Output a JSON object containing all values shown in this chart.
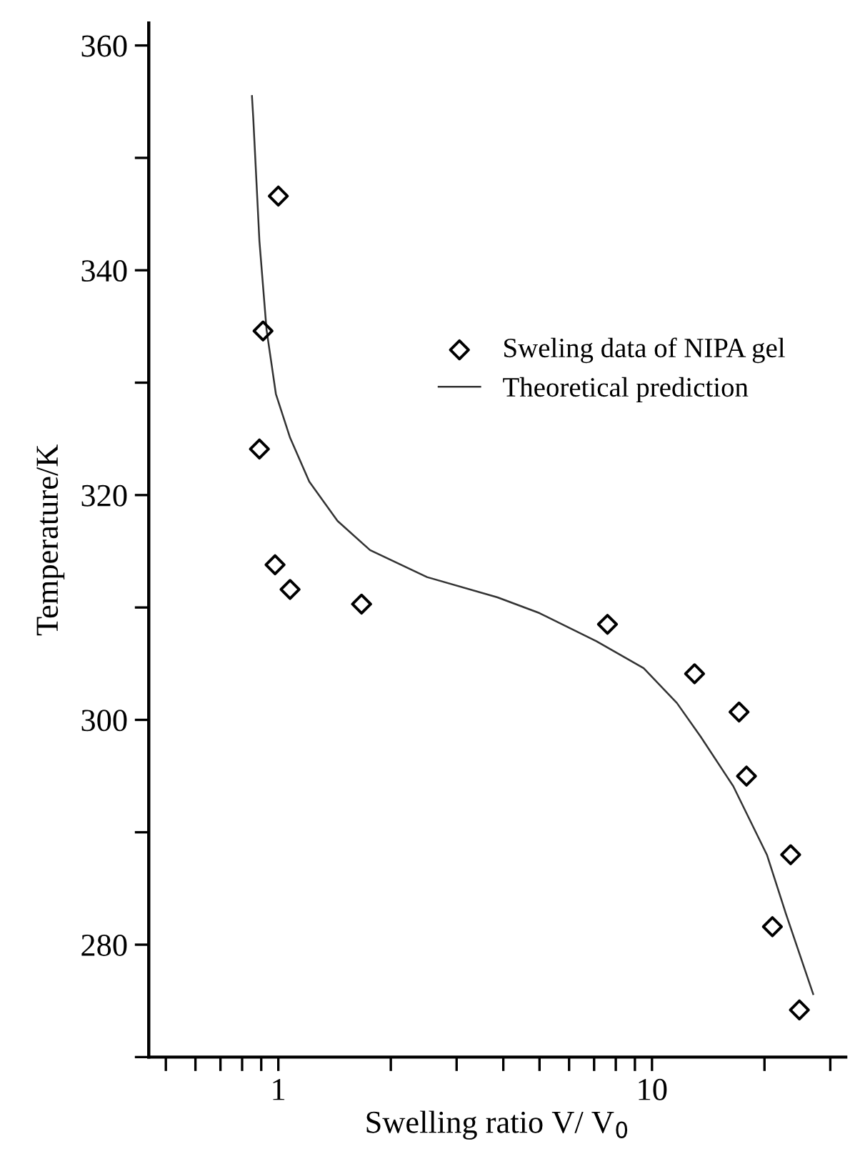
{
  "chart_data": {
    "type": "scatter",
    "xlabel": "Swelling ratio V/ V$_{0}$",
    "ylabel": "Temperature/K",
    "log": "x",
    "xlim": [
      0.45,
      33
    ],
    "ylim": [
      270,
      362
    ],
    "xticks": [
      {
        "value": 0.5,
        "label": null
      },
      {
        "value": 0.6,
        "label": null
      },
      {
        "value": 0.7,
        "label": null
      },
      {
        "value": 0.8,
        "label": null
      },
      {
        "value": 0.9,
        "label": null
      },
      1,
      {
        "value": 2,
        "label": null
      },
      {
        "value": 3,
        "label": null
      },
      {
        "value": 4,
        "label": null
      },
      {
        "value": 5,
        "label": null
      },
      {
        "value": 6,
        "label": null
      },
      {
        "value": 7,
        "label": null
      },
      {
        "value": 8,
        "label": null
      },
      {
        "value": 9,
        "label": null
      },
      10,
      {
        "value": 20,
        "label": null
      },
      {
        "value": 30,
        "label": null
      }
    ],
    "yticks": [
      {
        "value": 270,
        "label": null
      },
      280,
      {
        "value": 290,
        "label": null
      },
      300,
      {
        "value": 310,
        "label": null
      },
      320,
      {
        "value": 330,
        "label": null
      },
      340,
      {
        "value": 350,
        "label": null
      },
      360
    ],
    "grid": false,
    "legend": "top right",
    "series": [
      {
        "name": "Sweling data of NIPA gel",
        "marker": "diamond",
        "color": "#000000",
        "x": [
          1.0,
          0.91,
          0.89,
          0.98,
          1.075,
          1.67,
          7.6,
          13.0,
          17.1,
          17.9,
          23.5,
          21.0,
          24.8
        ],
        "values": [
          346.6,
          334.6,
          324.1,
          313.8,
          311.6,
          310.3,
          308.5,
          304.1,
          300.7,
          295.0,
          288.0,
          281.6,
          274.2
        ]
      },
      {
        "name": "Theoretical prediction",
        "type": "line",
        "marker": "none",
        "line_style": "solid",
        "color": "#333333",
        "x": [
          0.85,
          0.857,
          0.89,
          0.93,
          0.985,
          1.075,
          1.21,
          1.44,
          1.76,
          2.5,
          3.86,
          5.0,
          7.1,
          9.5,
          11.66,
          13.5,
          16.5,
          20.3,
          22.8,
          27.0
        ],
        "values": [
          355.5,
          353.5,
          342.6,
          334.7,
          329.0,
          325.1,
          321.2,
          317.7,
          315.1,
          312.7,
          310.9,
          309.5,
          307.0,
          304.6,
          301.5,
          298.5,
          294.1,
          288.0,
          282.8,
          275.6
        ]
      }
    ]
  }
}
